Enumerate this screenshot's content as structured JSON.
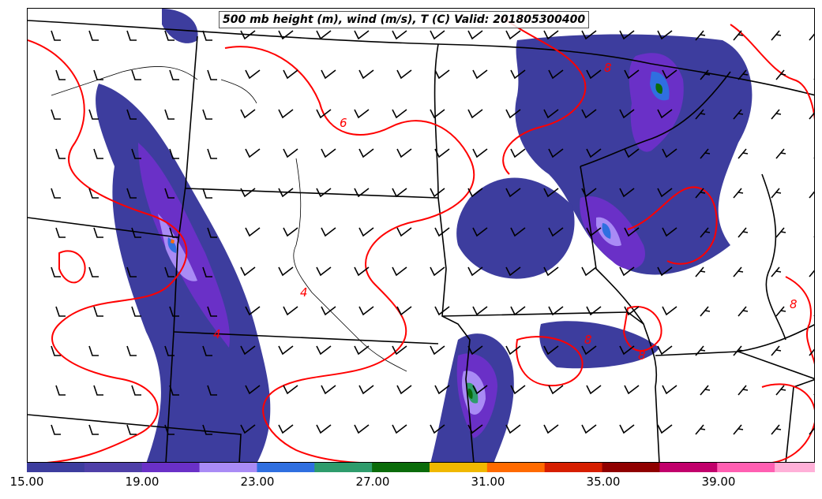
{
  "title": "500 mb height (m), wind (m/s), T (C) Valid: 201805300400",
  "colorbar": {
    "colors": [
      "#3d3d9e",
      "#4e3fa8",
      "#6a30c7",
      "#a98bf5",
      "#2f6fe0",
      "#2e9c6c",
      "#0a6b0a",
      "#f0b800",
      "#ff6a00",
      "#d61e00",
      "#8f0000",
      "#c1006b",
      "#ff5fb2",
      "#ffb0d8"
    ],
    "ticks": [
      "15.00",
      "19.00",
      "23.00",
      "27.00",
      "31.00",
      "35.00",
      "39.00"
    ]
  },
  "contour_labels": [
    "4",
    "4",
    "6",
    "8",
    "8",
    "8",
    "8"
  ]
}
